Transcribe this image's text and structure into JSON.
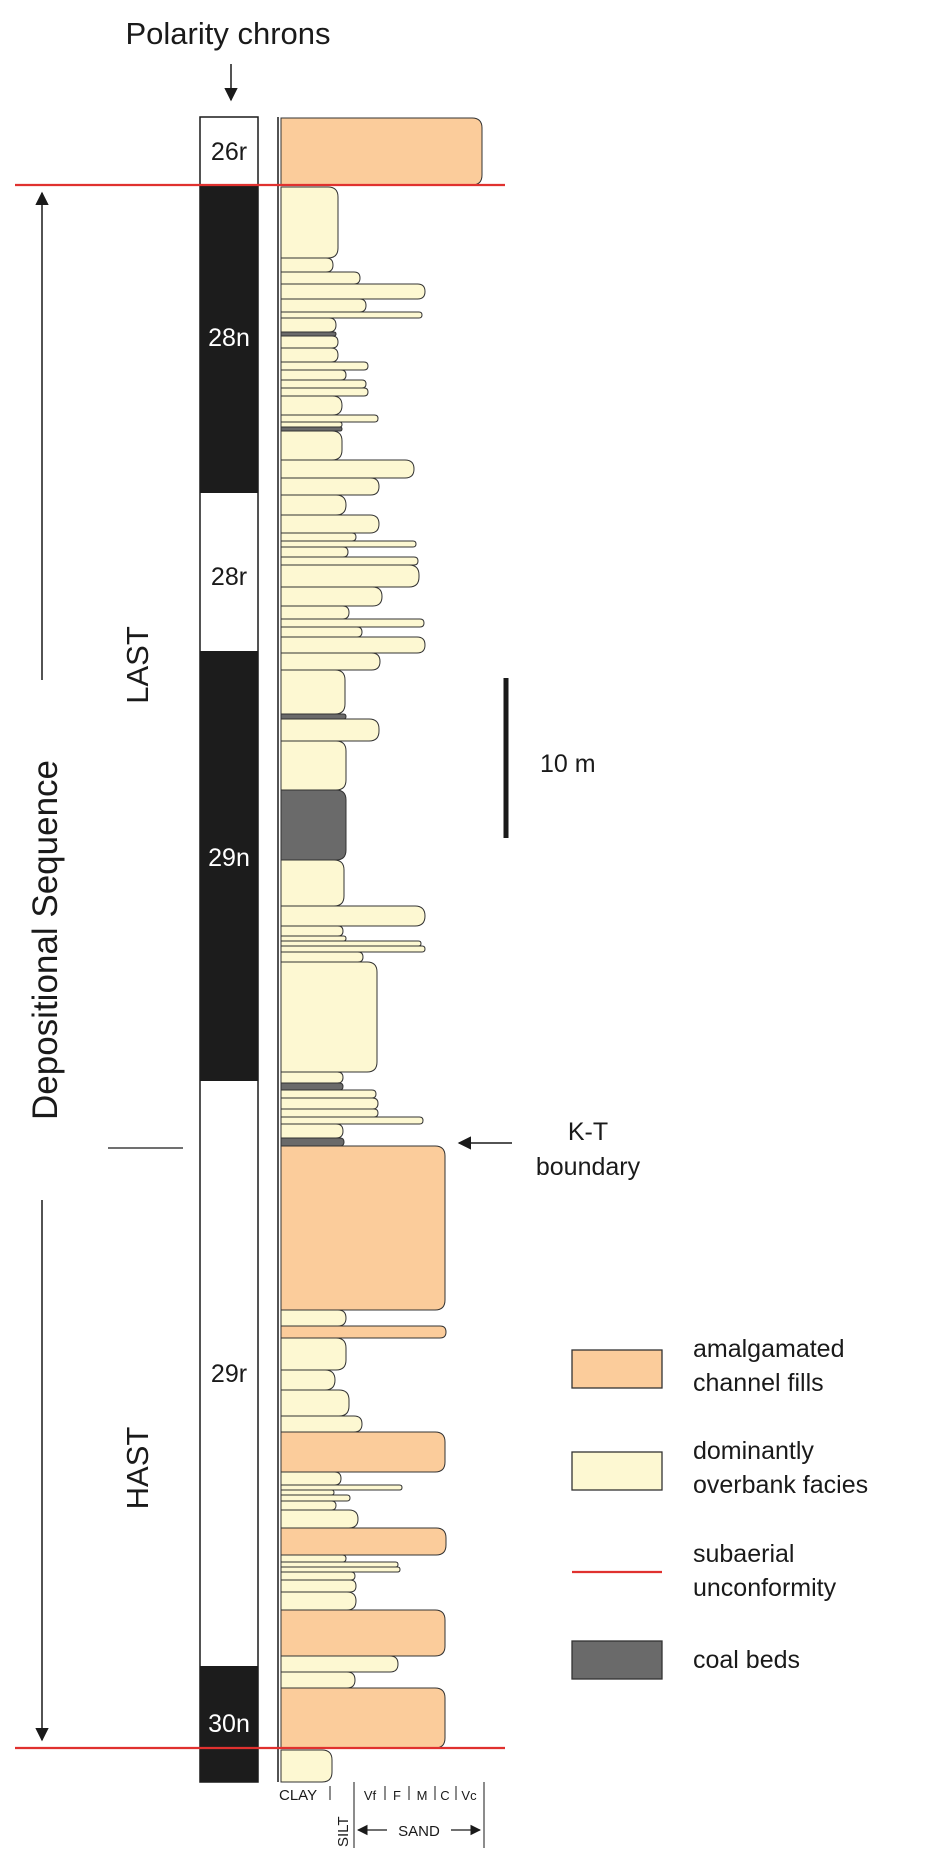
{
  "header": {
    "title": "Polarity chrons"
  },
  "chrons": [
    {
      "label": "26r",
      "polarity": "reversed"
    },
    {
      "label": "28n",
      "polarity": "normal"
    },
    {
      "label": "28r",
      "polarity": "reversed"
    },
    {
      "label": "29n",
      "polarity": "normal"
    },
    {
      "label": "29r",
      "polarity": "reversed"
    },
    {
      "label": "30n",
      "polarity": "normal"
    }
  ],
  "sequence": {
    "label": "Depositional Sequence",
    "upper": "LAST",
    "lower": "HAST"
  },
  "scale_bar": {
    "label": "10 m"
  },
  "kt_boundary": {
    "line1": "K-T",
    "line2": "boundary"
  },
  "grain_axis": {
    "clay": "CLAY",
    "silt": "SILT",
    "sand_classes": [
      "Vf",
      "F",
      "M",
      "C",
      "Vc"
    ],
    "sand": "SAND"
  },
  "legend": [
    {
      "line1": "amalgamated",
      "line2": "channel fills",
      "color": "#fbcc9b"
    },
    {
      "line1": "dominantly",
      "line2": "overbank facies",
      "color": "#fdf8d2"
    },
    {
      "line1": "subaerial",
      "line2": "unconformity",
      "color": "#e0312f"
    },
    {
      "line1": "coal beds",
      "line2": "",
      "color": "#6a6a6a"
    }
  ],
  "colors": {
    "channel": "#fbcc9b",
    "overbank": "#fdf8d2",
    "coal": "#6a6a6a",
    "unconformity": "#e0312f",
    "normal_polarity": "#1c1c1c",
    "stroke": "#333333"
  }
}
